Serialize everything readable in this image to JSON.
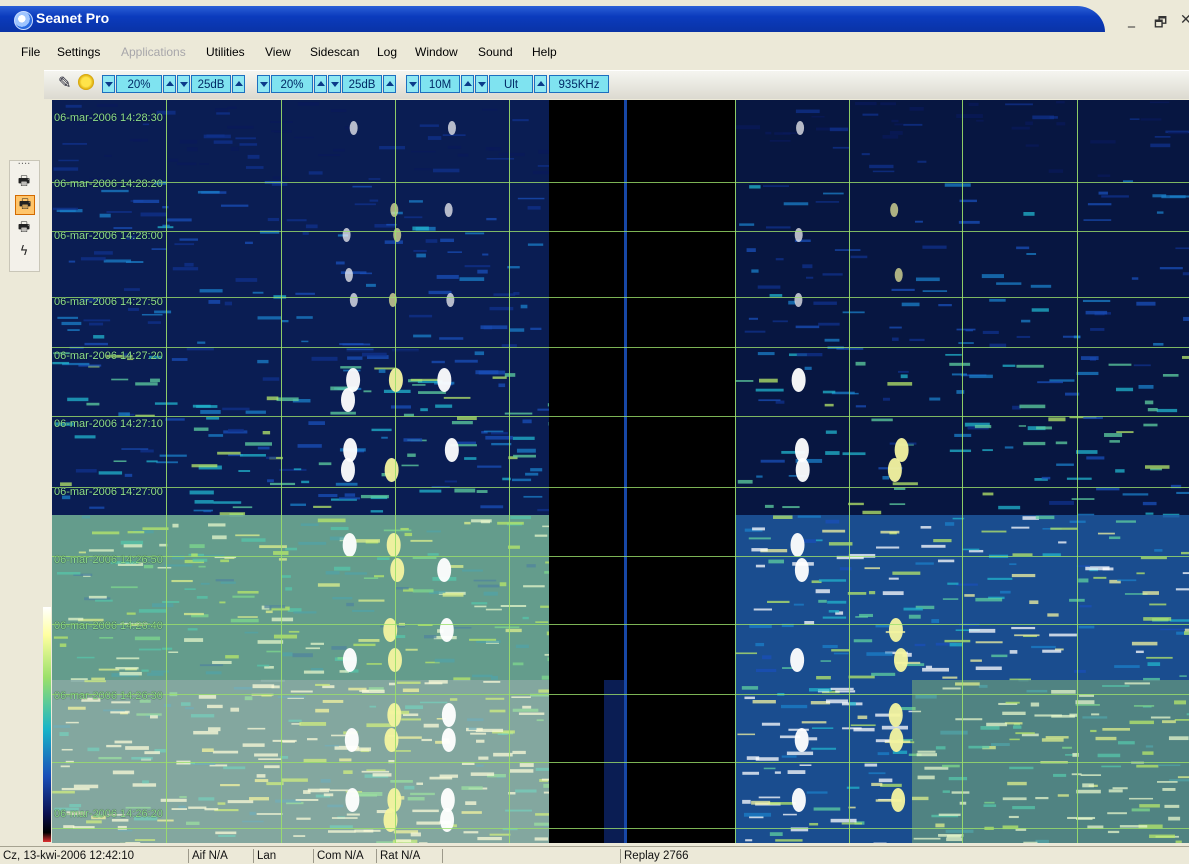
{
  "window": {
    "title": "Seanet Pro",
    "minimize": "_",
    "restore": "🗗",
    "close": "✕"
  },
  "menu": [
    "File",
    "Settings",
    "Applications",
    "Utilities",
    "View",
    "Sidescan",
    "Log",
    "Window",
    "Sound",
    "Help"
  ],
  "menu_disabled": [
    "Applications"
  ],
  "toolbar": {
    "gain_left": "20%",
    "contrast_left": "25dB",
    "gain_right": "20%",
    "contrast_right": "25dB",
    "range": "10M",
    "mode": "Ult",
    "frequency": "935KHz"
  },
  "left_dock": {
    "tools": [
      "printer-icon",
      "select-printer-icon",
      "print-preview-icon",
      "lightning-icon"
    ]
  },
  "display": {
    "timestamps": [
      "06-mar-2006 14:28:30",
      "06-mar-2006 14:28:20",
      "06-mar-2006 14:28:00",
      "06-mar-2006 14:27:50",
      "06-mar-2006 14:27:20",
      "06-mar-2006 14:27:10",
      "06-mar-2006 14:27:00",
      "06-mar-2006 14:26:50",
      "06-mar-2006 14:26:40",
      "06-mar-2006 14:26:30",
      "06-mar-2006 14:26:20"
    ],
    "colors": {
      "grid": "#9be06a",
      "label": "#8fe08f",
      "background": "#000000"
    }
  },
  "status": {
    "datetime": "Cz, 13-kwi-2006 12:42:10",
    "aif": "Aif N/A",
    "lan": "Lan",
    "com": "Com N/A",
    "rat": "Rat N/A",
    "replay": "Replay 2766"
  }
}
